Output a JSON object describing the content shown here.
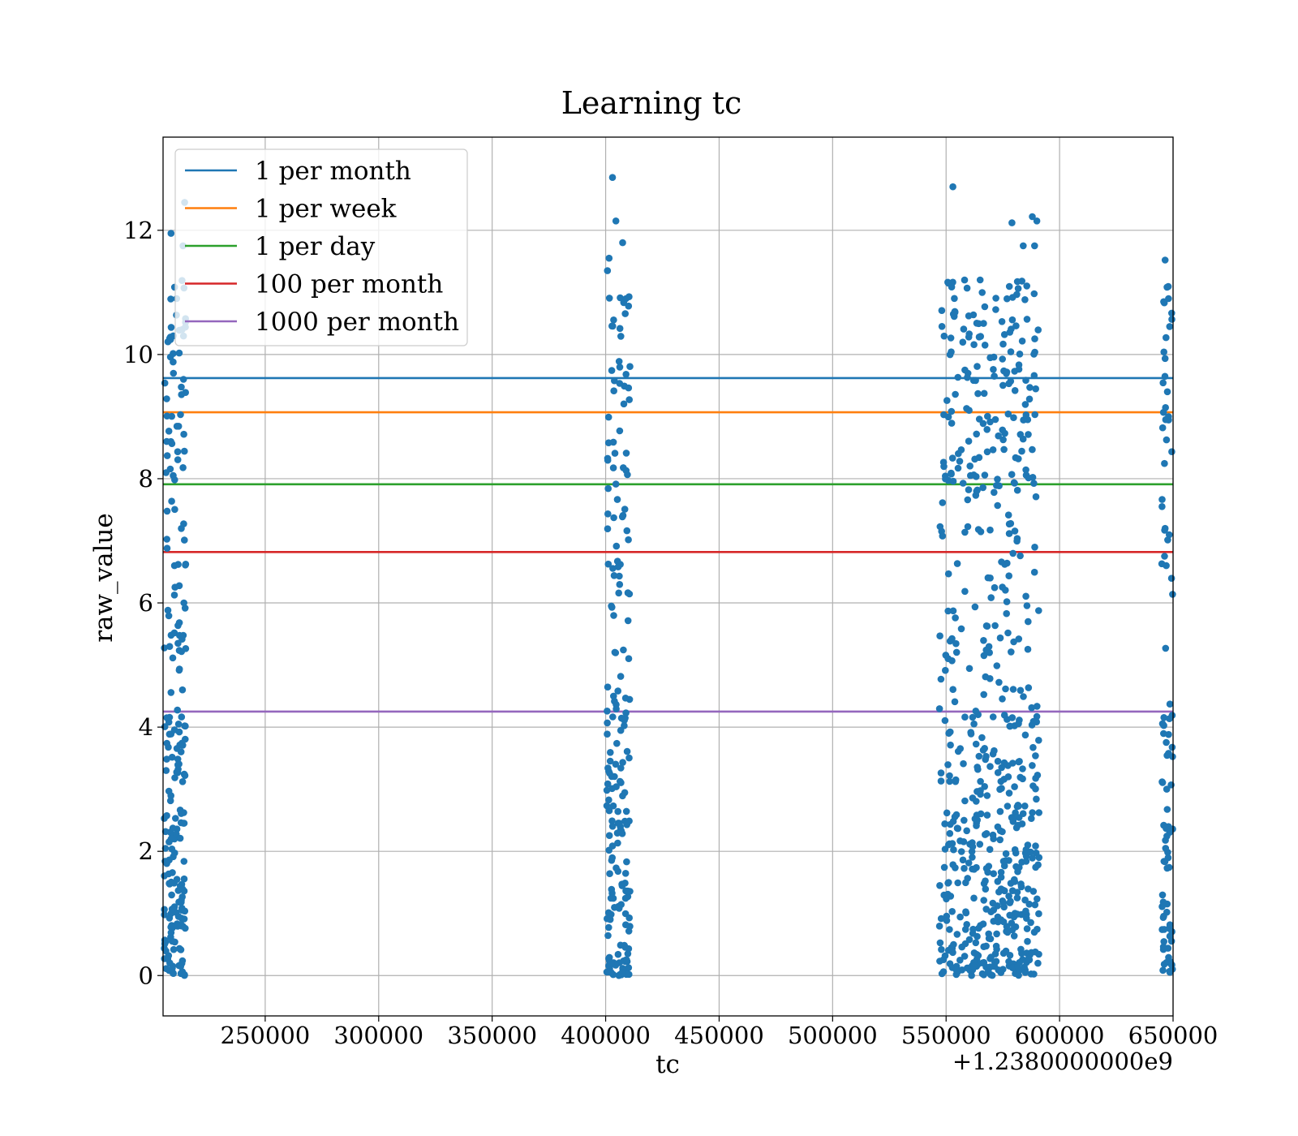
{
  "chart_data": {
    "type": "scatter",
    "title": "Learning tc",
    "xlabel": "tc",
    "ylabel": "raw_value",
    "x_offset_label": "+1.2380000000e9",
    "xlim": [
      205000,
      650000
    ],
    "ylim": [
      -0.65,
      13.5
    ],
    "grid": true,
    "legend_position": "upper-left",
    "x_ticks": [
      250000,
      300000,
      350000,
      400000,
      450000,
      500000,
      550000,
      600000,
      650000
    ],
    "x_tick_labels": [
      "250000",
      "300000",
      "350000",
      "400000",
      "450000",
      "500000",
      "550000",
      "600000",
      "650000"
    ],
    "y_ticks": [
      0,
      2,
      4,
      6,
      8,
      10,
      12
    ],
    "y_tick_labels": [
      "0",
      "2",
      "4",
      "6",
      "8",
      "10",
      "12"
    ],
    "hlines": [
      {
        "name": "1 per month",
        "y": 9.62,
        "color": "#1f77b4"
      },
      {
        "name": "1 per week",
        "y": 9.07,
        "color": "#ff7f0e"
      },
      {
        "name": "1 per day",
        "y": 7.91,
        "color": "#2ca02c"
      },
      {
        "name": "100 per month",
        "y": 6.82,
        "color": "#d62728"
      },
      {
        "name": "1000 per month",
        "y": 4.25,
        "color": "#9467bd"
      }
    ],
    "scatter_color": "#1f77b4",
    "clusters": [
      {
        "x_range": [
          205500,
          215000
        ],
        "count": 220,
        "notable_points": [
          [
            214500,
            12.45
          ],
          [
            208500,
            11.95
          ],
          [
            213800,
            11.75
          ],
          [
            211000,
            10.9
          ],
          [
            209500,
            10.3
          ],
          [
            214000,
            9.6
          ],
          [
            206800,
            6.88
          ],
          [
            214200,
            6.0
          ]
        ]
      },
      {
        "x_range": [
          400500,
          411000
        ],
        "count": 200,
        "notable_points": [
          [
            403000,
            12.85
          ],
          [
            404500,
            12.15
          ],
          [
            407500,
            11.8
          ],
          [
            401500,
            11.55
          ],
          [
            400800,
            11.35
          ],
          [
            409000,
            10.9
          ],
          [
            402500,
            5.95
          ]
        ]
      },
      {
        "x_range": [
          547000,
          591000
        ],
        "count": 620,
        "notable_points": [
          [
            553000,
            12.7
          ],
          [
            588000,
            12.22
          ],
          [
            590000,
            12.15
          ],
          [
            579000,
            12.12
          ],
          [
            584000,
            11.75
          ],
          [
            589000,
            11.75
          ],
          [
            551000,
            11.15
          ],
          [
            565000,
            11.2
          ]
        ]
      },
      {
        "x_range": [
          645000,
          650000
        ],
        "count": 90,
        "notable_points": [
          [
            646500,
            11.52
          ],
          [
            648000,
            10.9
          ],
          [
            648500,
            10.45
          ],
          [
            647500,
            9.4
          ],
          [
            646500,
            7.2
          ],
          [
            647000,
            6.6
          ]
        ]
      }
    ]
  }
}
